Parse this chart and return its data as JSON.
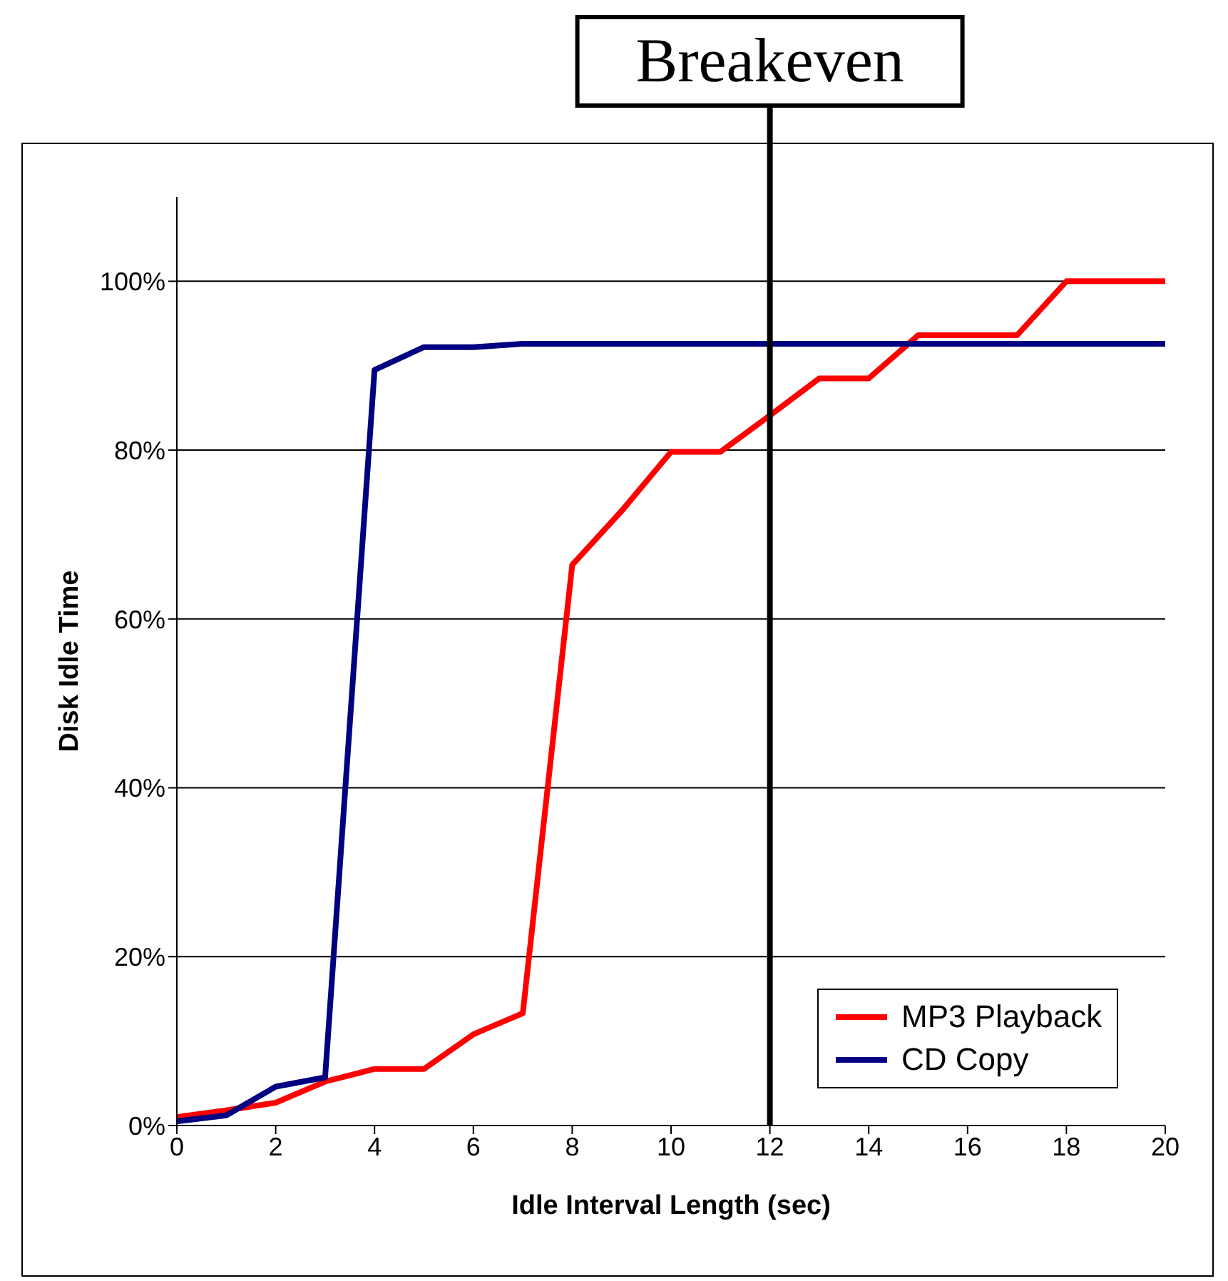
{
  "chart_data": {
    "type": "line",
    "xlabel": "Idle Interval Length (sec)",
    "ylabel": "Disk Idle Time",
    "x": [
      0,
      1,
      2,
      3,
      4,
      5,
      6,
      7,
      8,
      9,
      10,
      11,
      12,
      13,
      14,
      15,
      16,
      17,
      18,
      19,
      20
    ],
    "series": [
      {
        "name": "MP3 Playback",
        "color": "#ff0000",
        "values": [
          1.0,
          1.8,
          2.7,
          5.2,
          6.7,
          6.7,
          10.8,
          13.3,
          66.4,
          72.8,
          79.8,
          79.8,
          84.1,
          88.5,
          88.5,
          93.6,
          93.6,
          93.6,
          100,
          100,
          100
        ]
      },
      {
        "name": "CD Copy",
        "color": "#000080",
        "values": [
          0.5,
          1.2,
          4.6,
          5.7,
          89.5,
          92.2,
          92.2,
          92.6,
          92.6,
          92.6,
          92.6,
          92.6,
          92.6,
          92.6,
          92.6,
          92.6,
          92.6,
          92.6,
          92.6,
          92.6,
          92.6
        ]
      }
    ],
    "xlim": [
      0,
      20
    ],
    "xticks": [
      0,
      2,
      4,
      6,
      8,
      10,
      12,
      14,
      16,
      18,
      20
    ],
    "ylim": [
      0,
      110
    ],
    "yticks": [
      {
        "value": 0,
        "label": "0%"
      },
      {
        "value": 20,
        "label": "20%"
      },
      {
        "value": 40,
        "label": "40%"
      },
      {
        "value": 60,
        "label": "60%"
      },
      {
        "value": 80,
        "label": "80%"
      },
      {
        "value": 100,
        "label": "100%"
      }
    ],
    "ref_lines": [
      {
        "axis": "x",
        "value": 12,
        "label": "Breakeven",
        "color": "#000000"
      }
    ],
    "grid": "y",
    "legend": "bottom right",
    "marker": "none",
    "line_style": "solid"
  }
}
